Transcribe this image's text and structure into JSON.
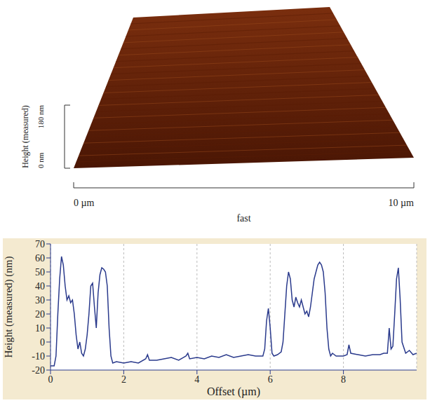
{
  "chart_data": [
    {
      "type": "surface",
      "x_label": "fast",
      "xlim": [
        0,
        10
      ],
      "xticks": [
        {
          "value": 0,
          "label": "0 µm"
        },
        {
          "value": 10,
          "label": "10 µm"
        }
      ],
      "z_label": "Height (measured)",
      "zlim": [
        0,
        180
      ],
      "zticks": [
        {
          "value": 0,
          "label": "0 nm"
        },
        {
          "value": 180,
          "label": "180 nm"
        }
      ],
      "color": "#7a2e0e"
    },
    {
      "type": "line",
      "x_label": "Offset (µm)",
      "y_label": "Height (measured) (nm)",
      "xlim": [
        0,
        10
      ],
      "xticks": [
        0,
        2,
        4,
        6,
        8
      ],
      "ylim": [
        -20,
        70
      ],
      "yticks": [
        -20,
        -10,
        0,
        10,
        20,
        30,
        40,
        50,
        60,
        70
      ],
      "grid": "x",
      "color": "#2a3a8c",
      "x": [
        0,
        0.1,
        0.15,
        0.2,
        0.25,
        0.3,
        0.35,
        0.4,
        0.45,
        0.5,
        0.55,
        0.6,
        0.65,
        0.7,
        0.75,
        0.8,
        0.85,
        0.9,
        0.95,
        1.0,
        1.05,
        1.1,
        1.15,
        1.2,
        1.25,
        1.3,
        1.35,
        1.4,
        1.45,
        1.5,
        1.55,
        1.6,
        1.65,
        1.7,
        1.8,
        2.0,
        2.2,
        2.4,
        2.6,
        2.65,
        2.7,
        2.9,
        3.1,
        3.3,
        3.5,
        3.7,
        3.75,
        3.8,
        4.0,
        4.2,
        4.4,
        4.6,
        4.8,
        5.0,
        5.2,
        5.4,
        5.6,
        5.8,
        5.85,
        5.9,
        5.95,
        6.0,
        6.05,
        6.1,
        6.2,
        6.3,
        6.35,
        6.4,
        6.45,
        6.5,
        6.55,
        6.6,
        6.65,
        6.7,
        6.75,
        6.8,
        6.85,
        6.9,
        6.95,
        7.0,
        7.05,
        7.1,
        7.15,
        7.2,
        7.25,
        7.3,
        7.35,
        7.4,
        7.45,
        7.5,
        7.55,
        7.6,
        7.65,
        7.7,
        7.8,
        8.0,
        8.1,
        8.15,
        8.2,
        8.4,
        8.6,
        8.8,
        9.0,
        9.1,
        9.2,
        9.25,
        9.3,
        9.35,
        9.4,
        9.45,
        9.5,
        9.55,
        9.6,
        9.7,
        9.8,
        9.9,
        10.0
      ],
      "values": [
        -17,
        -17,
        -10,
        20,
        45,
        61,
        55,
        40,
        30,
        33,
        28,
        30,
        20,
        5,
        -5,
        0,
        -8,
        -10,
        -5,
        5,
        20,
        40,
        42,
        25,
        10,
        35,
        48,
        53,
        52,
        50,
        40,
        10,
        -10,
        -15,
        -14,
        -15,
        -14,
        -15,
        -12,
        -9,
        -13,
        -13,
        -12,
        -11,
        -13,
        -10,
        -8,
        -12,
        -11,
        -12,
        -10,
        -11,
        -9,
        -11,
        -10,
        -9,
        -10,
        -10,
        -5,
        15,
        24,
        10,
        -8,
        -10,
        -9,
        -7,
        0,
        20,
        40,
        50,
        45,
        30,
        25,
        32,
        28,
        25,
        30,
        25,
        20,
        22,
        18,
        25,
        35,
        45,
        50,
        55,
        57,
        55,
        50,
        35,
        10,
        -5,
        -10,
        -8,
        -10,
        -10,
        -9,
        -2,
        -8,
        -9,
        -10,
        -9,
        -9,
        -8,
        -8,
        10,
        -5,
        -3,
        20,
        45,
        53,
        30,
        0,
        -8,
        -6,
        -9,
        -8
      ]
    }
  ]
}
